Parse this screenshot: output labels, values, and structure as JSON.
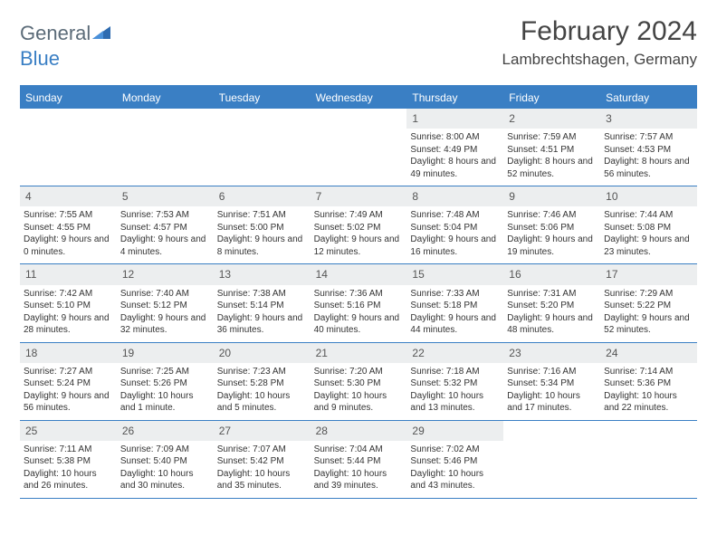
{
  "logo": {
    "text1": "General",
    "text2": "Blue"
  },
  "title": "February 2024",
  "location": "Lambrechtshagen, Germany",
  "colors": {
    "header_bg": "#3a7fc4",
    "daynum_bg": "#eceeef",
    "text": "#333333",
    "logo_gray": "#5b6b78",
    "logo_blue": "#3a7fc4"
  },
  "daysOfWeek": [
    "Sunday",
    "Monday",
    "Tuesday",
    "Wednesday",
    "Thursday",
    "Friday",
    "Saturday"
  ],
  "weeks": [
    [
      {
        "n": "",
        "sr": "",
        "ss": "",
        "dl": ""
      },
      {
        "n": "",
        "sr": "",
        "ss": "",
        "dl": ""
      },
      {
        "n": "",
        "sr": "",
        "ss": "",
        "dl": ""
      },
      {
        "n": "",
        "sr": "",
        "ss": "",
        "dl": ""
      },
      {
        "n": "1",
        "sr": "Sunrise: 8:00 AM",
        "ss": "Sunset: 4:49 PM",
        "dl": "Daylight: 8 hours and 49 minutes."
      },
      {
        "n": "2",
        "sr": "Sunrise: 7:59 AM",
        "ss": "Sunset: 4:51 PM",
        "dl": "Daylight: 8 hours and 52 minutes."
      },
      {
        "n": "3",
        "sr": "Sunrise: 7:57 AM",
        "ss": "Sunset: 4:53 PM",
        "dl": "Daylight: 8 hours and 56 minutes."
      }
    ],
    [
      {
        "n": "4",
        "sr": "Sunrise: 7:55 AM",
        "ss": "Sunset: 4:55 PM",
        "dl": "Daylight: 9 hours and 0 minutes."
      },
      {
        "n": "5",
        "sr": "Sunrise: 7:53 AM",
        "ss": "Sunset: 4:57 PM",
        "dl": "Daylight: 9 hours and 4 minutes."
      },
      {
        "n": "6",
        "sr": "Sunrise: 7:51 AM",
        "ss": "Sunset: 5:00 PM",
        "dl": "Daylight: 9 hours and 8 minutes."
      },
      {
        "n": "7",
        "sr": "Sunrise: 7:49 AM",
        "ss": "Sunset: 5:02 PM",
        "dl": "Daylight: 9 hours and 12 minutes."
      },
      {
        "n": "8",
        "sr": "Sunrise: 7:48 AM",
        "ss": "Sunset: 5:04 PM",
        "dl": "Daylight: 9 hours and 16 minutes."
      },
      {
        "n": "9",
        "sr": "Sunrise: 7:46 AM",
        "ss": "Sunset: 5:06 PM",
        "dl": "Daylight: 9 hours and 19 minutes."
      },
      {
        "n": "10",
        "sr": "Sunrise: 7:44 AM",
        "ss": "Sunset: 5:08 PM",
        "dl": "Daylight: 9 hours and 23 minutes."
      }
    ],
    [
      {
        "n": "11",
        "sr": "Sunrise: 7:42 AM",
        "ss": "Sunset: 5:10 PM",
        "dl": "Daylight: 9 hours and 28 minutes."
      },
      {
        "n": "12",
        "sr": "Sunrise: 7:40 AM",
        "ss": "Sunset: 5:12 PM",
        "dl": "Daylight: 9 hours and 32 minutes."
      },
      {
        "n": "13",
        "sr": "Sunrise: 7:38 AM",
        "ss": "Sunset: 5:14 PM",
        "dl": "Daylight: 9 hours and 36 minutes."
      },
      {
        "n": "14",
        "sr": "Sunrise: 7:36 AM",
        "ss": "Sunset: 5:16 PM",
        "dl": "Daylight: 9 hours and 40 minutes."
      },
      {
        "n": "15",
        "sr": "Sunrise: 7:33 AM",
        "ss": "Sunset: 5:18 PM",
        "dl": "Daylight: 9 hours and 44 minutes."
      },
      {
        "n": "16",
        "sr": "Sunrise: 7:31 AM",
        "ss": "Sunset: 5:20 PM",
        "dl": "Daylight: 9 hours and 48 minutes."
      },
      {
        "n": "17",
        "sr": "Sunrise: 7:29 AM",
        "ss": "Sunset: 5:22 PM",
        "dl": "Daylight: 9 hours and 52 minutes."
      }
    ],
    [
      {
        "n": "18",
        "sr": "Sunrise: 7:27 AM",
        "ss": "Sunset: 5:24 PM",
        "dl": "Daylight: 9 hours and 56 minutes."
      },
      {
        "n": "19",
        "sr": "Sunrise: 7:25 AM",
        "ss": "Sunset: 5:26 PM",
        "dl": "Daylight: 10 hours and 1 minute."
      },
      {
        "n": "20",
        "sr": "Sunrise: 7:23 AM",
        "ss": "Sunset: 5:28 PM",
        "dl": "Daylight: 10 hours and 5 minutes."
      },
      {
        "n": "21",
        "sr": "Sunrise: 7:20 AM",
        "ss": "Sunset: 5:30 PM",
        "dl": "Daylight: 10 hours and 9 minutes."
      },
      {
        "n": "22",
        "sr": "Sunrise: 7:18 AM",
        "ss": "Sunset: 5:32 PM",
        "dl": "Daylight: 10 hours and 13 minutes."
      },
      {
        "n": "23",
        "sr": "Sunrise: 7:16 AM",
        "ss": "Sunset: 5:34 PM",
        "dl": "Daylight: 10 hours and 17 minutes."
      },
      {
        "n": "24",
        "sr": "Sunrise: 7:14 AM",
        "ss": "Sunset: 5:36 PM",
        "dl": "Daylight: 10 hours and 22 minutes."
      }
    ],
    [
      {
        "n": "25",
        "sr": "Sunrise: 7:11 AM",
        "ss": "Sunset: 5:38 PM",
        "dl": "Daylight: 10 hours and 26 minutes."
      },
      {
        "n": "26",
        "sr": "Sunrise: 7:09 AM",
        "ss": "Sunset: 5:40 PM",
        "dl": "Daylight: 10 hours and 30 minutes."
      },
      {
        "n": "27",
        "sr": "Sunrise: 7:07 AM",
        "ss": "Sunset: 5:42 PM",
        "dl": "Daylight: 10 hours and 35 minutes."
      },
      {
        "n": "28",
        "sr": "Sunrise: 7:04 AM",
        "ss": "Sunset: 5:44 PM",
        "dl": "Daylight: 10 hours and 39 minutes."
      },
      {
        "n": "29",
        "sr": "Sunrise: 7:02 AM",
        "ss": "Sunset: 5:46 PM",
        "dl": "Daylight: 10 hours and 43 minutes."
      },
      {
        "n": "",
        "sr": "",
        "ss": "",
        "dl": ""
      },
      {
        "n": "",
        "sr": "",
        "ss": "",
        "dl": ""
      }
    ]
  ]
}
